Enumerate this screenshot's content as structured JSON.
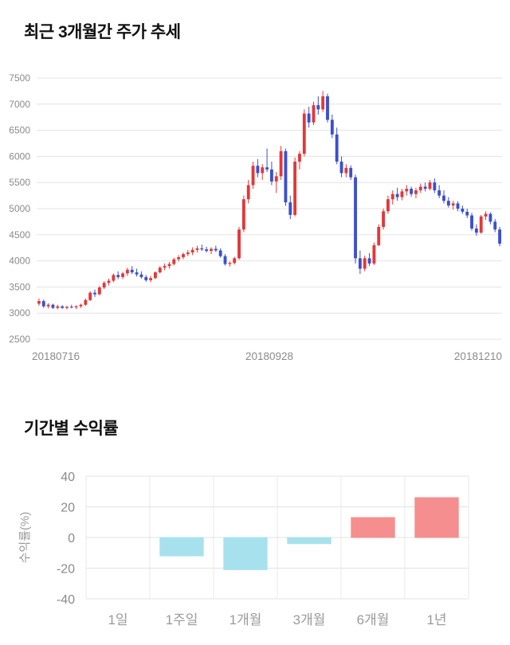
{
  "colors": {
    "grid": "#e3e3e3",
    "grid_vertical": "#e8e8e8",
    "axis_text": "#8a8a8a",
    "category_text": "#9a9a9a",
    "title_text": "#111111"
  },
  "chart_data": [
    {
      "type": "candlestick",
      "title": "최근 3개월간 주가 추세",
      "x_labels": [
        "20180716",
        "20180928",
        "20181210"
      ],
      "ylim": [
        2500,
        7500
      ],
      "y_tick_step": 500,
      "grid": true,
      "up_color": "#e23838",
      "down_color": "#3a4fd0",
      "candles": [
        [
          3180,
          3280,
          3140,
          3230
        ],
        [
          3230,
          3260,
          3100,
          3130
        ],
        [
          3130,
          3190,
          3090,
          3160
        ],
        [
          3160,
          3180,
          3080,
          3100
        ],
        [
          3100,
          3160,
          3070,
          3130
        ],
        [
          3130,
          3150,
          3080,
          3100
        ],
        [
          3100,
          3140,
          3070,
          3120
        ],
        [
          3120,
          3160,
          3090,
          3110
        ],
        [
          3110,
          3150,
          3080,
          3130
        ],
        [
          3130,
          3180,
          3100,
          3160
        ],
        [
          3160,
          3280,
          3140,
          3250
        ],
        [
          3250,
          3420,
          3230,
          3390
        ],
        [
          3390,
          3450,
          3310,
          3360
        ],
        [
          3360,
          3520,
          3340,
          3490
        ],
        [
          3490,
          3610,
          3460,
          3580
        ],
        [
          3580,
          3660,
          3530,
          3620
        ],
        [
          3620,
          3760,
          3590,
          3730
        ],
        [
          3730,
          3800,
          3650,
          3690
        ],
        [
          3690,
          3790,
          3650,
          3760
        ],
        [
          3760,
          3870,
          3710,
          3830
        ],
        [
          3830,
          3900,
          3750,
          3780
        ],
        [
          3780,
          3850,
          3700,
          3740
        ],
        [
          3740,
          3800,
          3660,
          3690
        ],
        [
          3690,
          3730,
          3600,
          3630
        ],
        [
          3630,
          3710,
          3590,
          3670
        ],
        [
          3670,
          3800,
          3650,
          3780
        ],
        [
          3780,
          3900,
          3760,
          3870
        ],
        [
          3870,
          3950,
          3820,
          3900
        ],
        [
          3900,
          3980,
          3850,
          3940
        ],
        [
          3940,
          4060,
          3910,
          4030
        ],
        [
          4030,
          4110,
          3990,
          4070
        ],
        [
          4070,
          4160,
          4030,
          4130
        ],
        [
          4130,
          4210,
          4090,
          4160
        ],
        [
          4160,
          4260,
          4110,
          4210
        ],
        [
          4210,
          4290,
          4160,
          4240
        ],
        [
          4240,
          4310,
          4190,
          4220
        ],
        [
          4220,
          4270,
          4160,
          4190
        ],
        [
          4190,
          4260,
          4130,
          4230
        ],
        [
          4230,
          4290,
          4170,
          4200
        ],
        [
          4200,
          4240,
          4060,
          4090
        ],
        [
          4090,
          4130,
          3910,
          3940
        ],
        [
          3940,
          3990,
          3890,
          3960
        ],
        [
          3960,
          4080,
          3930,
          4050
        ],
        [
          4050,
          4650,
          4020,
          4600
        ],
        [
          4600,
          5250,
          4550,
          5180
        ],
        [
          5180,
          5550,
          5100,
          5450
        ],
        [
          5450,
          5900,
          5380,
          5820
        ],
        [
          5820,
          5950,
          5600,
          5680
        ],
        [
          5680,
          5850,
          5550,
          5790
        ],
        [
          5790,
          6150,
          5700,
          5750
        ],
        [
          5750,
          5900,
          5450,
          5520
        ],
        [
          5520,
          5700,
          5300,
          5620
        ],
        [
          5620,
          6200,
          5550,
          6100
        ],
        [
          6100,
          6150,
          5050,
          5120
        ],
        [
          5120,
          5250,
          4800,
          4880
        ],
        [
          4880,
          5980,
          4850,
          5900
        ],
        [
          5900,
          6100,
          5750,
          6050
        ],
        [
          6050,
          6900,
          6000,
          6820
        ],
        [
          6820,
          6950,
          6550,
          6650
        ],
        [
          6650,
          7050,
          6600,
          6980
        ],
        [
          6980,
          7150,
          6800,
          6900
        ],
        [
          6900,
          7250,
          6850,
          7150
        ],
        [
          7150,
          7200,
          6650,
          6700
        ],
        [
          6700,
          6800,
          6350,
          6420
        ],
        [
          6420,
          6550,
          5850,
          5900
        ],
        [
          5900,
          6000,
          5600,
          5680
        ],
        [
          5680,
          5850,
          5600,
          5780
        ],
        [
          5780,
          5830,
          5550,
          5600
        ],
        [
          5600,
          5650,
          3950,
          4050
        ],
        [
          4050,
          4200,
          3750,
          3850
        ],
        [
          3850,
          4100,
          3800,
          4050
        ],
        [
          4050,
          4150,
          3900,
          3950
        ],
        [
          3950,
          4350,
          3920,
          4300
        ],
        [
          4300,
          4700,
          4280,
          4650
        ],
        [
          4650,
          5000,
          4600,
          4950
        ],
        [
          4950,
          5250,
          4900,
          5180
        ],
        [
          5180,
          5350,
          5080,
          5280
        ],
        [
          5280,
          5400,
          5150,
          5220
        ],
        [
          5220,
          5380,
          5160,
          5330
        ],
        [
          5330,
          5450,
          5250,
          5380
        ],
        [
          5380,
          5420,
          5230,
          5280
        ],
        [
          5280,
          5400,
          5200,
          5350
        ],
        [
          5350,
          5480,
          5300,
          5420
        ],
        [
          5420,
          5500,
          5330,
          5380
        ],
        [
          5380,
          5550,
          5350,
          5500
        ],
        [
          5500,
          5580,
          5300,
          5350
        ],
        [
          5350,
          5450,
          5200,
          5250
        ],
        [
          5250,
          5350,
          5100,
          5150
        ],
        [
          5150,
          5220,
          5020,
          5060
        ],
        [
          5060,
          5150,
          4980,
          5100
        ],
        [
          5100,
          5140,
          4950,
          5000
        ],
        [
          5000,
          5060,
          4900,
          4940
        ],
        [
          4940,
          5000,
          4820,
          4870
        ],
        [
          4870,
          4920,
          4580,
          4620
        ],
        [
          4620,
          4700,
          4480,
          4540
        ],
        [
          4540,
          4880,
          4520,
          4850
        ],
        [
          4850,
          4950,
          4780,
          4900
        ],
        [
          4900,
          4930,
          4700,
          4750
        ],
        [
          4750,
          4800,
          4550,
          4600
        ],
        [
          4600,
          4650,
          4280,
          4330
        ]
      ]
    },
    {
      "type": "bar",
      "title": "기간별 수익률",
      "ylabel": "수익률(%)",
      "categories": [
        "1일",
        "1주일",
        "1개월",
        "3개월",
        "6개월",
        "1년"
      ],
      "values": [
        0,
        -12,
        -21,
        -4,
        13,
        26
      ],
      "ylim": [
        -40,
        40
      ],
      "y_ticks": [
        40,
        20,
        0,
        -20,
        -40
      ],
      "grid": true,
      "positive_color": "#f58e8e",
      "negative_color": "#a8e1ee"
    }
  ]
}
